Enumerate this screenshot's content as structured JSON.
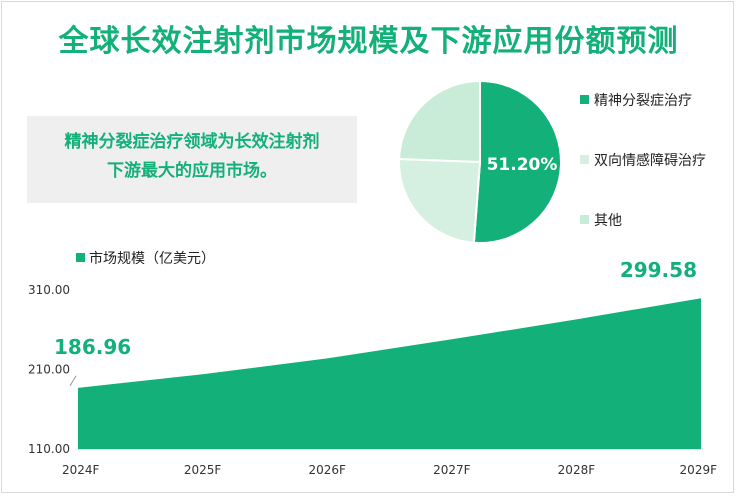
{
  "title": "全球长效注射剂市场规模及下游应用份额预测",
  "callout": {
    "line1": "精神分裂症治疗领域为长效注射剂",
    "line2": "下游最大的应用市场。"
  },
  "colors": {
    "primary": "#13b07a",
    "pie_light": "#d5f0e0",
    "pie_lighter": "#c8ecd8",
    "callout_bg": "#efefef"
  },
  "chart_data": [
    {
      "type": "pie",
      "slices": [
        {
          "label": "精神分裂症治疗",
          "value": 51.2,
          "color": "#13b07a"
        },
        {
          "label": "双向情感障碍治疗",
          "value": 24.4,
          "color": "#d5f0e0"
        },
        {
          "label": "其他",
          "value": 24.4,
          "color": "#c8ecd8"
        }
      ],
      "data_label": "51.20%",
      "legend_position": "right"
    },
    {
      "type": "area",
      "series": [
        {
          "name": "市场规模（亿美元）",
          "color": "#13b07a",
          "values": [
            186.96,
            204.0,
            224.0,
            248.0,
            273.0,
            299.58
          ]
        }
      ],
      "categories": [
        "2024F",
        "2025F",
        "2026F",
        "2027F",
        "2028F",
        "2029F"
      ],
      "ylim": [
        110,
        310
      ],
      "yticks": [
        "110.00",
        "210.00",
        "310.00"
      ],
      "data_labels": {
        "first": "186.96",
        "last": "299.58"
      },
      "grid": false,
      "legend_position": "top-left"
    }
  ]
}
